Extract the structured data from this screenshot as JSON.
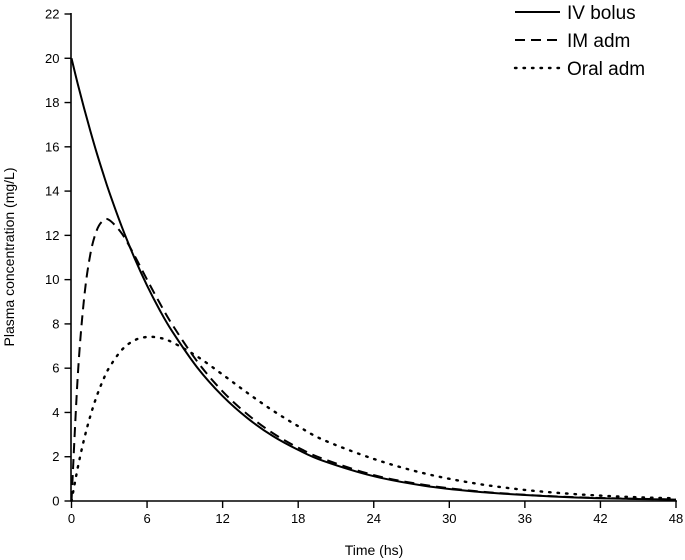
{
  "chart_data": {
    "type": "line",
    "title": "",
    "xlabel": "Time (hs)",
    "ylabel": "Plasma concentration (mg/L)",
    "xlim": [
      0,
      48
    ],
    "ylim": [
      0,
      22
    ],
    "xticks": [
      0,
      6,
      12,
      18,
      24,
      30,
      36,
      42,
      48
    ],
    "yticks": [
      0,
      2,
      4,
      6,
      8,
      10,
      12,
      14,
      16,
      18,
      20,
      22
    ],
    "grid": false,
    "legend_position": "top-right",
    "x": [
      0,
      0.5,
      1,
      1.5,
      2,
      2.5,
      3,
      4,
      5,
      6,
      7,
      8,
      10,
      12,
      14,
      16,
      18,
      20,
      24,
      28,
      32,
      36,
      40,
      44,
      48
    ],
    "series": [
      {
        "name": "IV bolus",
        "style": "solid",
        "color": "#000000",
        "values": [
          20,
          18.83,
          17.74,
          16.71,
          15.73,
          14.82,
          13.95,
          12.38,
          10.98,
          9.73,
          8.63,
          7.66,
          6.02,
          4.74,
          3.73,
          2.93,
          2.31,
          1.81,
          1.12,
          0.69,
          0.43,
          0.27,
          0.16,
          0.1,
          0.06
        ]
      },
      {
        "name": "IM adm",
        "style": "dashed",
        "color": "#000000",
        "values": [
          0,
          5.67,
          9.15,
          11.16,
          12.22,
          12.66,
          12.69,
          12.08,
          11.09,
          10.0,
          8.95,
          7.97,
          6.29,
          4.95,
          3.9,
          3.06,
          2.41,
          1.9,
          1.17,
          0.73,
          0.45,
          0.28,
          0.17,
          0.11,
          0.07
        ]
      },
      {
        "name": "Oral adm",
        "style": "dotted",
        "color": "#000000",
        "values": [
          0,
          1.51,
          2.79,
          3.85,
          4.73,
          5.45,
          6.03,
          6.83,
          7.26,
          7.41,
          7.37,
          7.17,
          6.52,
          5.71,
          4.87,
          4.08,
          3.38,
          2.76,
          1.9,
          1.25,
          0.8,
          0.5,
          0.31,
          0.19,
          0.12
        ]
      }
    ]
  }
}
